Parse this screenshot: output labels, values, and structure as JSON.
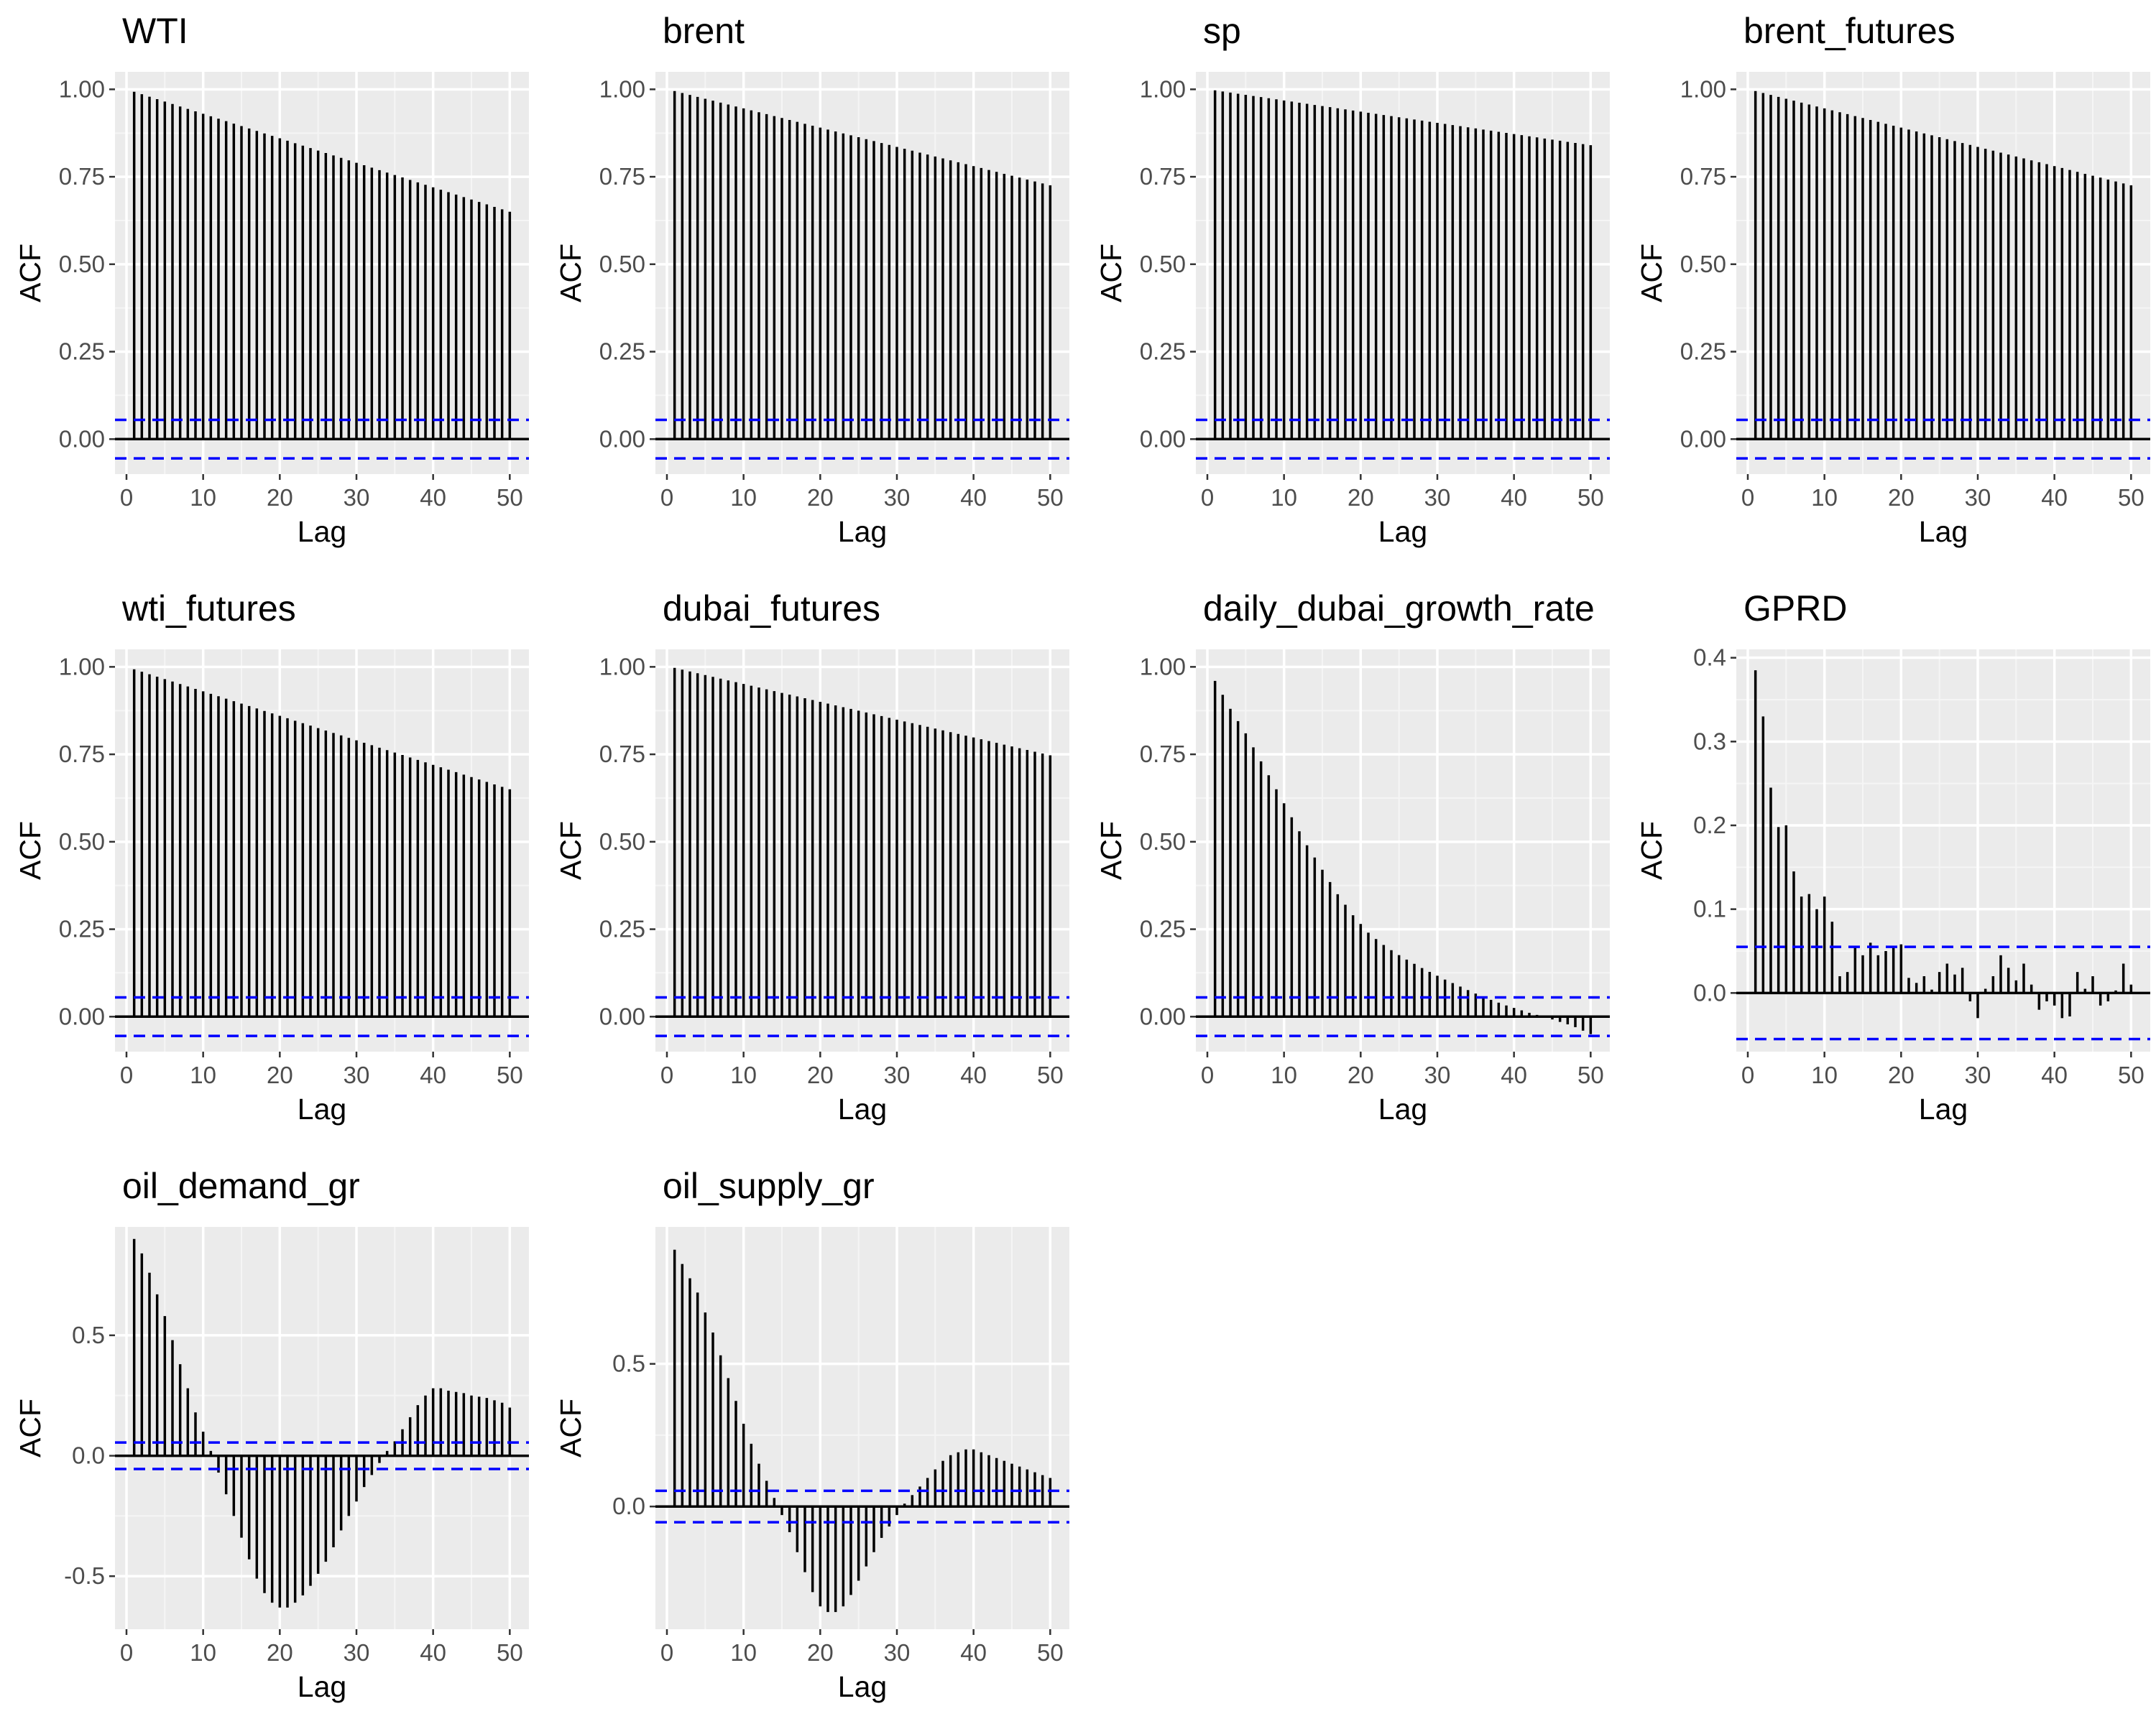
{
  "colors": {
    "panel_background": "#ebebeb",
    "grid_major": "#ffffff",
    "grid_minor": "#f5f5f5",
    "bar": "#000000",
    "confidence_band": "#0000ff"
  },
  "chart_data": [
    {
      "type": "bar",
      "title": "WTI",
      "xlabel": "Lag",
      "ylabel": "ACF",
      "xlim": [
        -1.5,
        52.5
      ],
      "ylim": [
        -0.1,
        1.05
      ],
      "x_ticks": [
        0,
        10,
        20,
        30,
        40,
        50
      ],
      "x_tick_labels": [
        "0",
        "10",
        "20",
        "30",
        "40",
        "50"
      ],
      "y_ticks": [
        0,
        0.25,
        0.5,
        0.75,
        1
      ],
      "y_tick_labels": [
        "0.00",
        "0.25",
        "0.50",
        "0.75",
        "1.00"
      ],
      "confidence_limit": 0.055,
      "lag_start": 1,
      "values": [
        0.993,
        0.986,
        0.979,
        0.972,
        0.965,
        0.958,
        0.951,
        0.944,
        0.937,
        0.93,
        0.923,
        0.916,
        0.909,
        0.902,
        0.895,
        0.888,
        0.881,
        0.874,
        0.867,
        0.86,
        0.853,
        0.846,
        0.839,
        0.832,
        0.825,
        0.818,
        0.811,
        0.804,
        0.797,
        0.79,
        0.783,
        0.776,
        0.769,
        0.762,
        0.755,
        0.748,
        0.741,
        0.734,
        0.727,
        0.72,
        0.713,
        0.706,
        0.699,
        0.692,
        0.685,
        0.678,
        0.671,
        0.664,
        0.657,
        0.65
      ],
      "grid": true
    },
    {
      "type": "bar",
      "title": "brent",
      "xlabel": "Lag",
      "ylabel": "ACF",
      "xlim": [
        -1.5,
        52.5
      ],
      "ylim": [
        -0.1,
        1.05
      ],
      "x_ticks": [
        0,
        10,
        20,
        30,
        40,
        50
      ],
      "x_tick_labels": [
        "0",
        "10",
        "20",
        "30",
        "40",
        "50"
      ],
      "y_ticks": [
        0,
        0.25,
        0.5,
        0.75,
        1
      ],
      "y_tick_labels": [
        "0.00",
        "0.25",
        "0.50",
        "0.75",
        "1.00"
      ],
      "confidence_limit": 0.055,
      "lag_start": 1,
      "values": [
        0.995,
        0.9895,
        0.984,
        0.9785,
        0.973,
        0.9675,
        0.962,
        0.9565,
        0.951,
        0.9455,
        0.94,
        0.9345,
        0.929,
        0.9235,
        0.918,
        0.9125,
        0.907,
        0.9015,
        0.896,
        0.8905,
        0.885,
        0.8795,
        0.874,
        0.8685,
        0.863,
        0.8575,
        0.852,
        0.8465,
        0.841,
        0.8355,
        0.83,
        0.8245,
        0.819,
        0.8135,
        0.808,
        0.8025,
        0.797,
        0.7915,
        0.786,
        0.7805,
        0.775,
        0.7695,
        0.764,
        0.7585,
        0.753,
        0.7475,
        0.742,
        0.7365,
        0.731,
        0.7255
      ],
      "grid": true
    },
    {
      "type": "bar",
      "title": "sp",
      "xlabel": "Lag",
      "ylabel": "ACF",
      "xlim": [
        -1.5,
        52.5
      ],
      "ylim": [
        -0.1,
        1.05
      ],
      "x_ticks": [
        0,
        10,
        20,
        30,
        40,
        50
      ],
      "x_tick_labels": [
        "0",
        "10",
        "20",
        "30",
        "40",
        "50"
      ],
      "y_ticks": [
        0,
        0.25,
        0.5,
        0.75,
        1
      ],
      "y_tick_labels": [
        "0.00",
        "0.25",
        "0.50",
        "0.75",
        "1.00"
      ],
      "confidence_limit": 0.055,
      "lag_start": 1,
      "values": [
        0.997,
        0.9938,
        0.9906,
        0.9874,
        0.9842,
        0.981,
        0.9778,
        0.9746,
        0.9714,
        0.9682,
        0.965,
        0.9618,
        0.9586,
        0.9554,
        0.9522,
        0.949,
        0.9458,
        0.9426,
        0.9394,
        0.9362,
        0.933,
        0.9298,
        0.9266,
        0.9234,
        0.9202,
        0.917,
        0.9138,
        0.9106,
        0.9074,
        0.9042,
        0.901,
        0.8978,
        0.8946,
        0.8914,
        0.8882,
        0.885,
        0.8818,
        0.8786,
        0.8754,
        0.8722,
        0.869,
        0.8658,
        0.8626,
        0.8594,
        0.8562,
        0.853,
        0.8498,
        0.8466,
        0.8434,
        0.8402
      ],
      "grid": true
    },
    {
      "type": "bar",
      "title": "brent_futures",
      "xlabel": "Lag",
      "ylabel": "ACF",
      "xlim": [
        -1.5,
        52.5
      ],
      "ylim": [
        -0.1,
        1.05
      ],
      "x_ticks": [
        0,
        10,
        20,
        30,
        40,
        50
      ],
      "x_tick_labels": [
        "0",
        "10",
        "20",
        "30",
        "40",
        "50"
      ],
      "y_ticks": [
        0,
        0.25,
        0.5,
        0.75,
        1
      ],
      "y_tick_labels": [
        "0.00",
        "0.25",
        "0.50",
        "0.75",
        "1.00"
      ],
      "confidence_limit": 0.055,
      "lag_start": 1,
      "values": [
        0.995,
        0.9895,
        0.984,
        0.9785,
        0.973,
        0.9675,
        0.962,
        0.9565,
        0.951,
        0.9455,
        0.94,
        0.9345,
        0.929,
        0.9235,
        0.918,
        0.9125,
        0.907,
        0.9015,
        0.896,
        0.8905,
        0.885,
        0.8795,
        0.874,
        0.8685,
        0.863,
        0.8575,
        0.852,
        0.8465,
        0.841,
        0.8355,
        0.83,
        0.8245,
        0.819,
        0.8135,
        0.808,
        0.8025,
        0.797,
        0.7915,
        0.786,
        0.7805,
        0.775,
        0.7695,
        0.764,
        0.7585,
        0.753,
        0.7475,
        0.742,
        0.7365,
        0.731,
        0.7255
      ],
      "grid": true
    },
    {
      "type": "bar",
      "title": "wti_futures",
      "xlabel": "Lag",
      "ylabel": "ACF",
      "xlim": [
        -1.5,
        52.5
      ],
      "ylim": [
        -0.1,
        1.05
      ],
      "x_ticks": [
        0,
        10,
        20,
        30,
        40,
        50
      ],
      "x_tick_labels": [
        "0",
        "10",
        "20",
        "30",
        "40",
        "50"
      ],
      "y_ticks": [
        0,
        0.25,
        0.5,
        0.75,
        1
      ],
      "y_tick_labels": [
        "0.00",
        "0.25",
        "0.50",
        "0.75",
        "1.00"
      ],
      "confidence_limit": 0.055,
      "lag_start": 1,
      "values": [
        0.993,
        0.986,
        0.979,
        0.972,
        0.965,
        0.958,
        0.951,
        0.944,
        0.937,
        0.93,
        0.923,
        0.916,
        0.909,
        0.902,
        0.895,
        0.888,
        0.881,
        0.874,
        0.867,
        0.86,
        0.853,
        0.846,
        0.839,
        0.832,
        0.825,
        0.818,
        0.811,
        0.804,
        0.797,
        0.79,
        0.783,
        0.776,
        0.769,
        0.762,
        0.755,
        0.748,
        0.741,
        0.734,
        0.727,
        0.72,
        0.713,
        0.706,
        0.699,
        0.692,
        0.685,
        0.678,
        0.671,
        0.664,
        0.657,
        0.65
      ],
      "grid": true
    },
    {
      "type": "bar",
      "title": "dubai_futures",
      "xlabel": "Lag",
      "ylabel": "ACF",
      "xlim": [
        -1.5,
        52.5
      ],
      "ylim": [
        -0.1,
        1.05
      ],
      "x_ticks": [
        0,
        10,
        20,
        30,
        40,
        50
      ],
      "x_tick_labels": [
        "0",
        "10",
        "20",
        "30",
        "40",
        "50"
      ],
      "y_ticks": [
        0,
        0.25,
        0.5,
        0.75,
        1
      ],
      "y_tick_labels": [
        "0.00",
        "0.25",
        "0.50",
        "0.75",
        "1.00"
      ],
      "confidence_limit": 0.055,
      "lag_start": 1,
      "values": [
        0.997,
        0.9919,
        0.9868,
        0.9817,
        0.9766,
        0.9715,
        0.9664,
        0.9613,
        0.9562,
        0.9511,
        0.946,
        0.9409,
        0.9358,
        0.9307,
        0.9256,
        0.9205,
        0.9154,
        0.9103,
        0.9052,
        0.9001,
        0.895,
        0.8899,
        0.8848,
        0.8797,
        0.8746,
        0.8695,
        0.8644,
        0.8593,
        0.8542,
        0.8491,
        0.844,
        0.8389,
        0.8338,
        0.8287,
        0.8236,
        0.8185,
        0.8134,
        0.8083,
        0.8032,
        0.7981,
        0.793,
        0.7879,
        0.7828,
        0.7777,
        0.7726,
        0.7675,
        0.7624,
        0.7573,
        0.7522,
        0.7471
      ],
      "grid": true
    },
    {
      "type": "bar",
      "title": "daily_dubai_growth_rate",
      "xlabel": "Lag",
      "ylabel": "ACF",
      "xlim": [
        -1.5,
        52.5
      ],
      "ylim": [
        -0.1,
        1.05
      ],
      "x_ticks": [
        0,
        10,
        20,
        30,
        40,
        50
      ],
      "x_tick_labels": [
        "0",
        "10",
        "20",
        "30",
        "40",
        "50"
      ],
      "y_ticks": [
        0,
        0.25,
        0.5,
        0.75,
        1
      ],
      "y_tick_labels": [
        "0.00",
        "0.25",
        "0.50",
        "0.75",
        "1.00"
      ],
      "confidence_limit": 0.055,
      "lag_start": 1,
      "values": [
        0.96,
        0.92,
        0.88,
        0.845,
        0.81,
        0.77,
        0.73,
        0.69,
        0.65,
        0.61,
        0.57,
        0.53,
        0.49,
        0.455,
        0.42,
        0.385,
        0.35,
        0.32,
        0.29,
        0.265,
        0.24,
        0.222,
        0.205,
        0.19,
        0.176,
        0.163,
        0.151,
        0.139,
        0.128,
        0.117,
        0.106,
        0.096,
        0.086,
        0.076,
        0.066,
        0.057,
        0.048,
        0.04,
        0.032,
        0.025,
        0.018,
        0.011,
        0.005,
        -0.002,
        -0.008,
        -0.015,
        -0.022,
        -0.03,
        -0.04,
        -0.05
      ],
      "grid": true
    },
    {
      "type": "bar",
      "title": "GPRD",
      "xlabel": "Lag",
      "ylabel": "ACF",
      "xlim": [
        -1.5,
        52.5
      ],
      "ylim": [
        -0.07,
        0.41
      ],
      "x_ticks": [
        0,
        10,
        20,
        30,
        40,
        50
      ],
      "x_tick_labels": [
        "0",
        "10",
        "20",
        "30",
        "40",
        "50"
      ],
      "y_ticks": [
        0,
        0.1,
        0.2,
        0.3,
        0.4
      ],
      "y_tick_labels": [
        "0.0",
        "0.1",
        "0.2",
        "0.3",
        "0.4"
      ],
      "confidence_limit": 0.055,
      "lag_start": 1,
      "values": [
        0.385,
        0.33,
        0.245,
        0.198,
        0.2,
        0.145,
        0.115,
        0.118,
        0.1,
        0.115,
        0.085,
        0.02,
        0.025,
        0.055,
        0.045,
        0.06,
        0.045,
        0.05,
        0.055,
        0.058,
        0.018,
        0.012,
        0.02,
        0.004,
        0.025,
        0.035,
        0.022,
        0.03,
        -0.01,
        -0.03,
        0.005,
        0.02,
        0.045,
        0.03,
        0.015,
        0.035,
        0.01,
        -0.02,
        -0.01,
        -0.015,
        -0.03,
        -0.028,
        0.025,
        0.005,
        0.02,
        -0.015,
        -0.01,
        0.003,
        0.035,
        0.01
      ],
      "grid": true
    },
    {
      "type": "bar",
      "title": "oil_demand_gr",
      "xlabel": "Lag",
      "ylabel": "ACF",
      "xlim": [
        -1.5,
        52.5
      ],
      "ylim": [
        -0.72,
        0.95
      ],
      "x_ticks": [
        0,
        10,
        20,
        30,
        40,
        50
      ],
      "x_tick_labels": [
        "0",
        "10",
        "20",
        "30",
        "40",
        "50"
      ],
      "y_ticks": [
        -0.5,
        0,
        0.5
      ],
      "y_tick_labels": [
        "-0.5",
        "0.0",
        "0.5"
      ],
      "confidence_limit": 0.055,
      "lag_start": 1,
      "values": [
        0.9,
        0.84,
        0.76,
        0.67,
        0.58,
        0.48,
        0.38,
        0.28,
        0.18,
        0.1,
        0.02,
        -0.07,
        -0.16,
        -0.25,
        -0.34,
        -0.43,
        -0.51,
        -0.57,
        -0.61,
        -0.63,
        -0.63,
        -0.61,
        -0.58,
        -0.54,
        -0.49,
        -0.44,
        -0.38,
        -0.31,
        -0.25,
        -0.19,
        -0.13,
        -0.08,
        -0.03,
        0.02,
        0.06,
        0.11,
        0.16,
        0.21,
        0.25,
        0.28,
        0.28,
        0.27,
        0.265,
        0.26,
        0.25,
        0.245,
        0.24,
        0.23,
        0.22,
        0.2
      ],
      "grid": true
    },
    {
      "type": "bar",
      "title": "oil_supply_gr",
      "xlabel": "Lag",
      "ylabel": "ACF",
      "xlim": [
        -1.5,
        52.5
      ],
      "ylim": [
        -0.43,
        0.98
      ],
      "x_ticks": [
        0,
        10,
        20,
        30,
        40,
        50
      ],
      "x_tick_labels": [
        "0",
        "10",
        "20",
        "30",
        "40",
        "50"
      ],
      "y_ticks": [
        0,
        0.5
      ],
      "y_tick_labels": [
        "0.0",
        "0.5"
      ],
      "confidence_limit": 0.055,
      "lag_start": 1,
      "values": [
        0.9,
        0.85,
        0.8,
        0.75,
        0.68,
        0.61,
        0.53,
        0.45,
        0.37,
        0.29,
        0.22,
        0.15,
        0.09,
        0.03,
        -0.03,
        -0.09,
        -0.16,
        -0.23,
        -0.3,
        -0.35,
        -0.37,
        -0.37,
        -0.35,
        -0.31,
        -0.26,
        -0.21,
        -0.16,
        -0.11,
        -0.07,
        -0.03,
        0.01,
        0.04,
        0.07,
        0.1,
        0.13,
        0.16,
        0.18,
        0.19,
        0.2,
        0.2,
        0.19,
        0.18,
        0.17,
        0.16,
        0.15,
        0.14,
        0.13,
        0.12,
        0.11,
        0.1
      ],
      "grid": true
    }
  ]
}
